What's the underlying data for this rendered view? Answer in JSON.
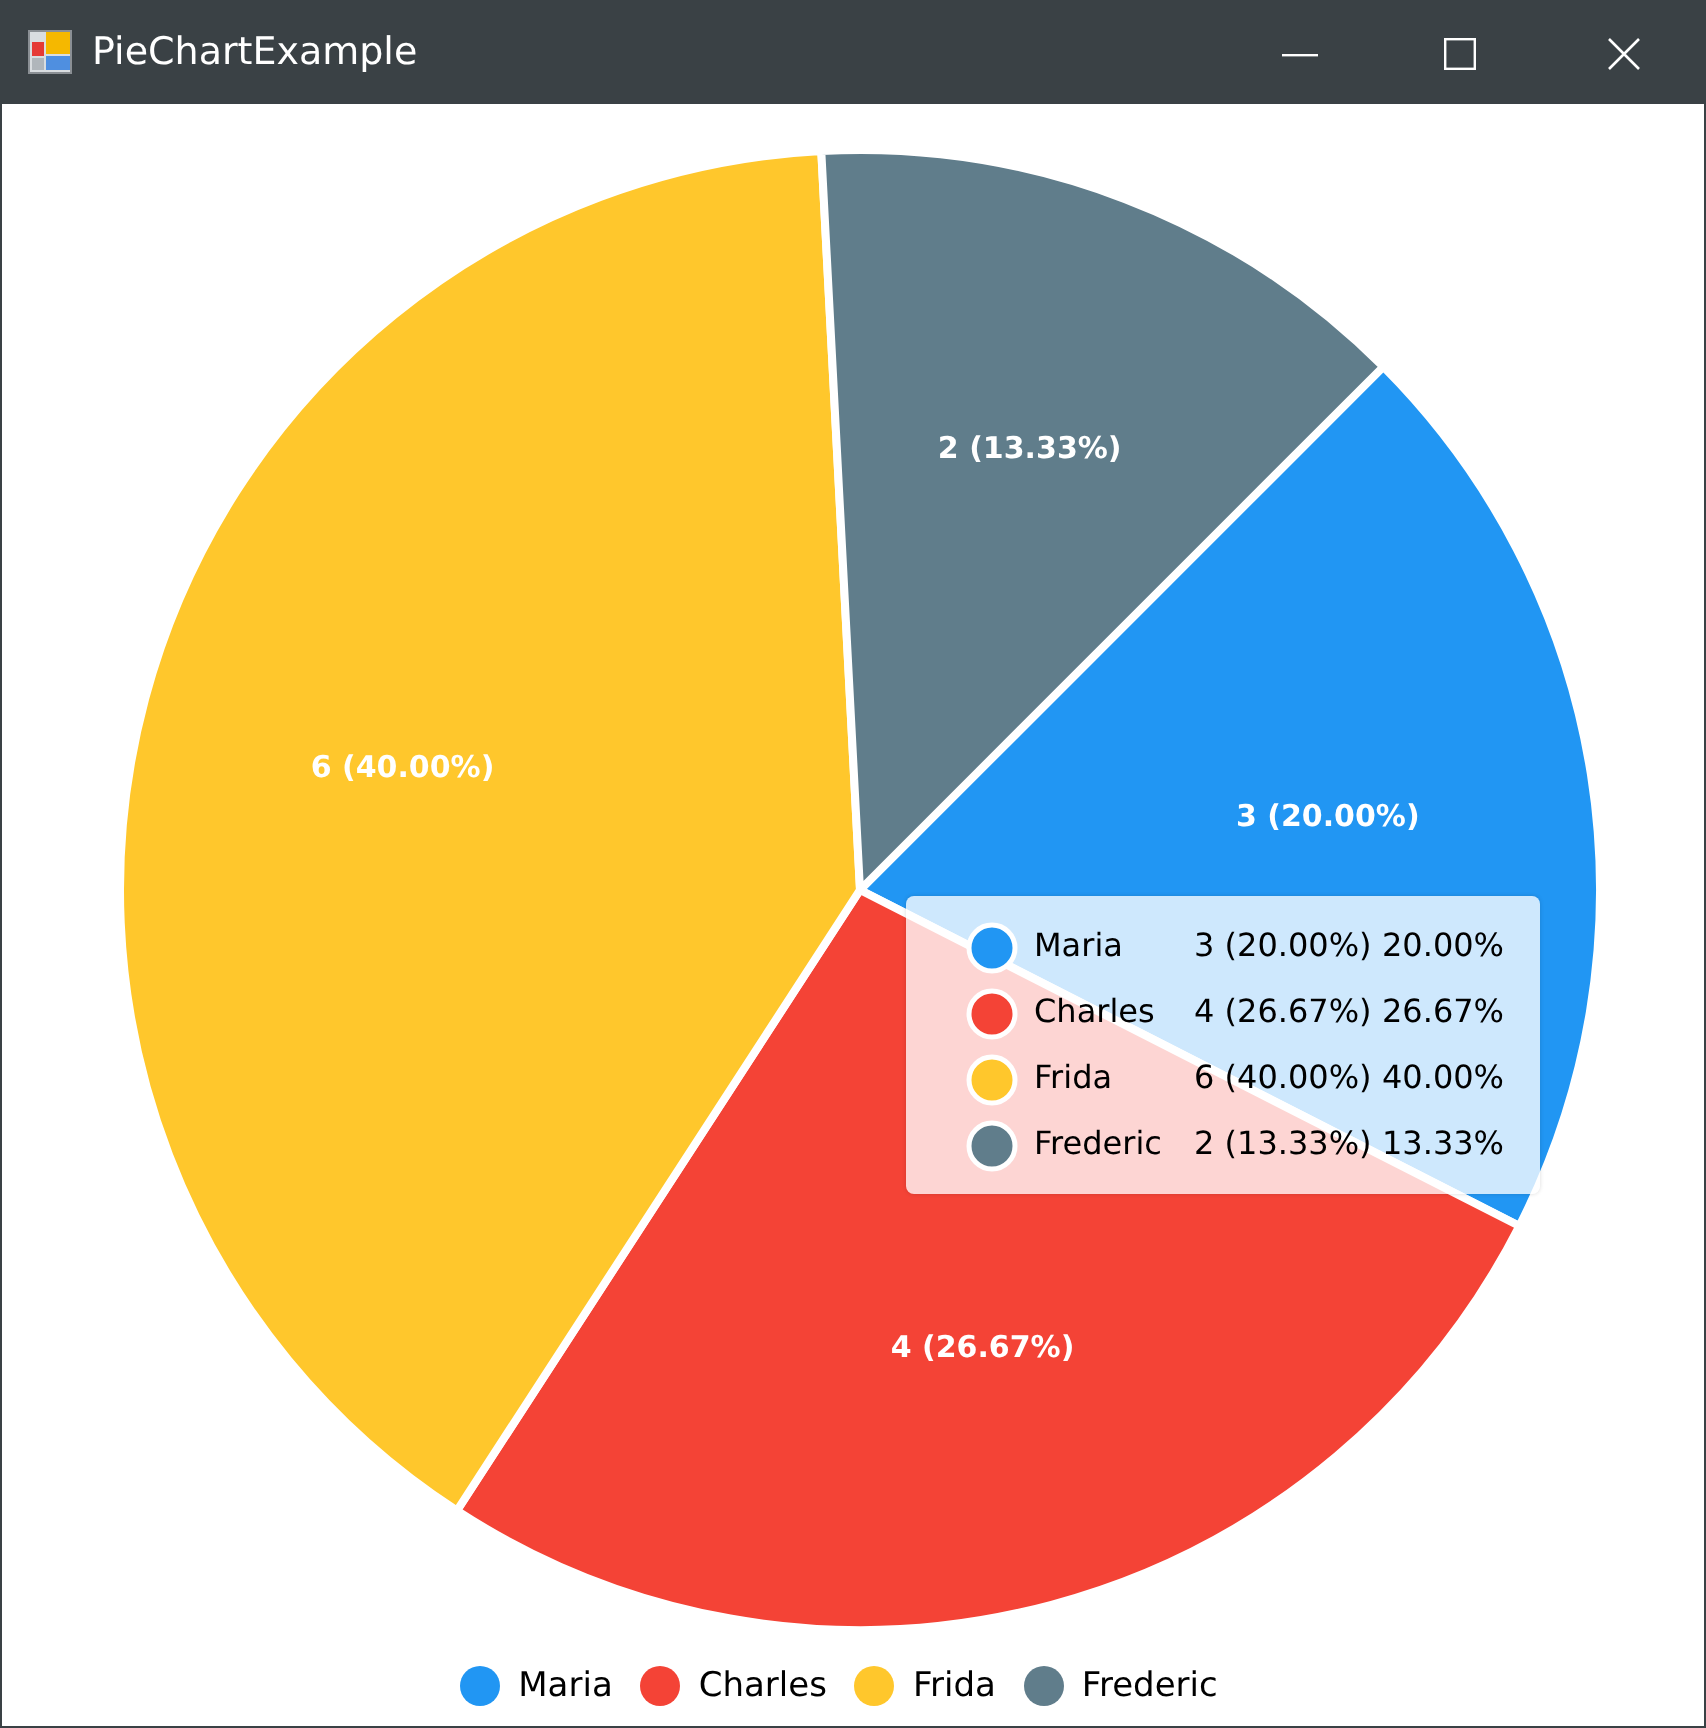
{
  "chart_data": {
    "type": "pie",
    "title": "PieChartExample",
    "categories": [
      "Maria",
      "Charles",
      "Frida",
      "Frederic"
    ],
    "values": [
      3,
      4,
      6,
      2
    ],
    "colors": [
      "#2196f3",
      "#f44336",
      "#ffc72c",
      "#607d8b"
    ],
    "value_labels": [
      "3 (20.00%)",
      "4 (26.67%)",
      "6 (40.00%)",
      "2 (13.33%)"
    ],
    "annotations": [
      "20.00%",
      "26.67%",
      "40.00%",
      "13.33%"
    ],
    "legend": "bottom"
  }
}
